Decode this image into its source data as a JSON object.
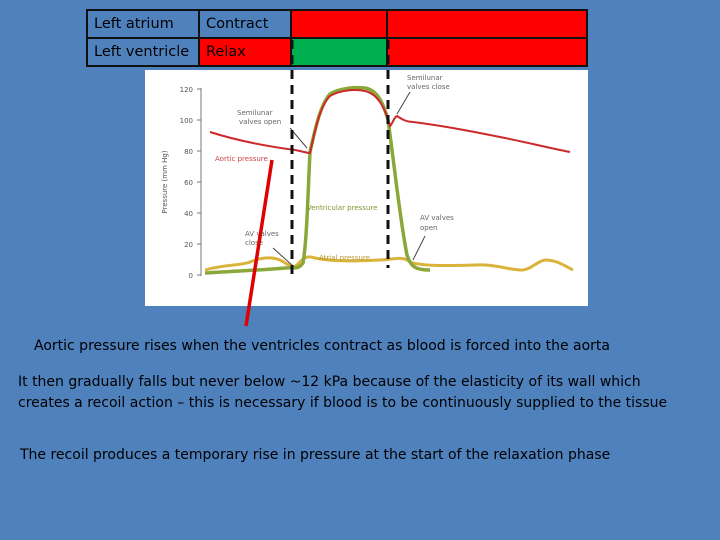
{
  "table": {
    "rows": [
      {
        "label": "Left atrium",
        "cells": [
          {
            "text": "Contract",
            "color": "#4f81bd"
          },
          {
            "text": "",
            "color": "#ff0000"
          },
          {
            "text": "",
            "color": "#ff0000"
          }
        ]
      },
      {
        "label": "Left ventricle",
        "cells": [
          {
            "text": "Relax",
            "color": "#ff0000"
          },
          {
            "text": "",
            "color": "#00b050"
          },
          {
            "text": "",
            "color": "#ff0000"
          }
        ]
      }
    ]
  },
  "figure": {
    "y_axis_label": "Pressure (mm Hg)",
    "y_ticks": [
      "120",
      "100",
      "80",
      "60",
      "40",
      "20",
      "0"
    ],
    "annotations": {
      "semilunar_open": [
        "Semilunar",
        "valves open"
      ],
      "semilunar_close": [
        "Semilunar",
        "valves close"
      ],
      "aortic_pressure": "Aortic pressure",
      "ventricular_pressure": "Ventricular pressure",
      "av_close": [
        "AV valves",
        "close"
      ],
      "av_open": [
        "AV valves",
        "open"
      ],
      "atrial_pressure": "Atrial pressure"
    },
    "colors": {
      "aortic": "#cc2a2a",
      "ventricular": "#8aa83a",
      "atrial": "#d9b33a",
      "pointer": "#e00000"
    }
  },
  "captions": {
    "line1": "Aortic pressure rises when the ventricles contract as blood is forced into the aorta",
    "line2": "It then gradually falls but never below ~12 kPa because of the elasticity of its wall which creates a recoil action – this is necessary if blood is to be continuously supplied to the tissue",
    "line3": "The recoil produces a temporary rise in pressure at the start of the relaxation phase"
  }
}
